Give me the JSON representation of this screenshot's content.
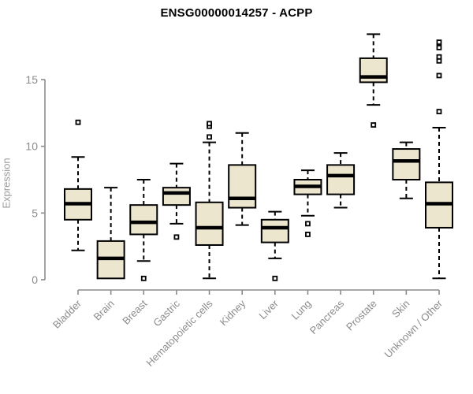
{
  "title": "ENSG00000014257 - ACPP",
  "chart_data": {
    "type": "boxplot",
    "title": "ENSG00000014257 - ACPP",
    "xlabel": "",
    "ylabel": "Expression",
    "ylim": [
      -0.4,
      18.6
    ],
    "yticks": [
      0,
      5,
      10,
      15
    ],
    "grid": false,
    "legend": "none",
    "colors": {
      "box_fill": "#ECE6CE",
      "box_border": "#000000",
      "median": "#000000",
      "whisker": "#000000",
      "axis": "#8C8C8C",
      "tick_label": "#8C8C8C",
      "title": "#000000"
    },
    "categories": [
      "Bladder",
      "Brain",
      "Breast",
      "Gastric",
      "Hematopoietic cells",
      "Kidney",
      "Liver",
      "Lung",
      "Pancreas",
      "Prostate",
      "Skin",
      "Unknown / Other"
    ],
    "series": [
      {
        "name": "Bladder",
        "whisker_low": 2.2,
        "q1": 4.5,
        "median": 5.7,
        "q3": 6.8,
        "whisker_high": 9.2,
        "outliers": [
          11.8
        ]
      },
      {
        "name": "Brain",
        "whisker_low": 0.1,
        "q1": 0.1,
        "median": 1.6,
        "q3": 2.9,
        "whisker_high": 6.9,
        "outliers": []
      },
      {
        "name": "Breast",
        "whisker_low": 1.4,
        "q1": 3.4,
        "median": 4.3,
        "q3": 5.6,
        "whisker_high": 7.5,
        "outliers": [
          0.1
        ]
      },
      {
        "name": "Gastric",
        "whisker_low": 4.2,
        "q1": 5.6,
        "median": 6.5,
        "q3": 6.9,
        "whisker_high": 8.7,
        "outliers": [
          3.2
        ]
      },
      {
        "name": "Hematopoietic cells",
        "whisker_low": 0.1,
        "q1": 2.6,
        "median": 3.9,
        "q3": 5.8,
        "whisker_high": 10.3,
        "outliers": [
          10.7,
          11.5,
          11.7
        ]
      },
      {
        "name": "Kidney",
        "whisker_low": 4.1,
        "q1": 5.4,
        "median": 6.1,
        "q3": 8.6,
        "whisker_high": 11.0,
        "outliers": []
      },
      {
        "name": "Liver",
        "whisker_low": 1.6,
        "q1": 2.8,
        "median": 3.9,
        "q3": 4.5,
        "whisker_high": 5.1,
        "outliers": [
          0.1
        ]
      },
      {
        "name": "Lung",
        "whisker_low": 4.8,
        "q1": 6.4,
        "median": 7.0,
        "q3": 7.5,
        "whisker_high": 8.2,
        "outliers": [
          4.2,
          3.4
        ]
      },
      {
        "name": "Pancreas",
        "whisker_low": 5.4,
        "q1": 6.4,
        "median": 7.8,
        "q3": 8.6,
        "whisker_high": 9.5,
        "outliers": []
      },
      {
        "name": "Prostate",
        "whisker_low": 13.1,
        "q1": 14.8,
        "median": 15.2,
        "q3": 16.6,
        "whisker_high": 18.4,
        "outliers": [
          11.6
        ]
      },
      {
        "name": "Skin",
        "whisker_low": 6.1,
        "q1": 7.5,
        "median": 8.9,
        "q3": 9.8,
        "whisker_high": 10.3,
        "outliers": []
      },
      {
        "name": "Unknown / Other",
        "whisker_low": 0.1,
        "q1": 3.9,
        "median": 5.7,
        "q3": 7.3,
        "whisker_high": 11.4,
        "outliers": [
          12.6,
          15.3,
          16.4,
          16.7,
          17.4,
          17.8
        ]
      }
    ]
  }
}
